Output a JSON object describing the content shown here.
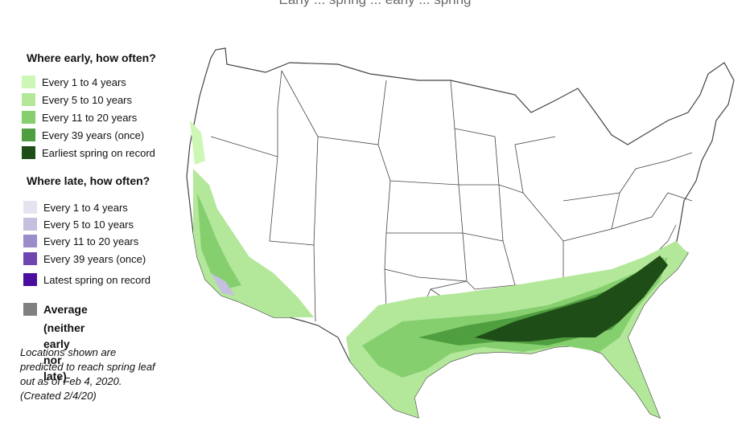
{
  "header": {
    "caption": "Early ... spring ... early ... spring"
  },
  "legend": {
    "early": {
      "title": "Where early, how often?",
      "items": [
        {
          "label": "Every 1 to 4 years",
          "color": "#ccf7b4"
        },
        {
          "label": "Every 5 to 10 years",
          "color": "#b3e89b"
        },
        {
          "label": "Every 11 to 20 years",
          "color": "#86cf6f"
        },
        {
          "label": "Every 39 years (once)",
          "color": "#4f9e3f"
        },
        {
          "label": "Earliest spring on record",
          "color": "#1f4d17"
        }
      ]
    },
    "late": {
      "title": "Where late, how often?",
      "items": [
        {
          "label": "Every 1 to 4 years",
          "color": "#e6e3f1"
        },
        {
          "label": "Every 5 to 10 years",
          "color": "#c5bfe0"
        },
        {
          "label": "Every 11 to 20 years",
          "color": "#9b8dc9"
        },
        {
          "label": "Every 39 years (once)",
          "color": "#6f45b0"
        },
        {
          "label": "Latest spring on record",
          "color": "#4a0e9e"
        }
      ]
    },
    "average": {
      "label_line1": "Average",
      "label_line2": "(neither early nor late)",
      "color": "#808080"
    }
  },
  "note": {
    "line1": "Locations shown are",
    "line2": "predicted to reach spring leaf",
    "line3": "out as of  Feb 4, 2020.",
    "line4": "(Created 2/4/20)"
  },
  "map": {
    "border_color": "#444444",
    "fill_color": "#ffffff"
  }
}
